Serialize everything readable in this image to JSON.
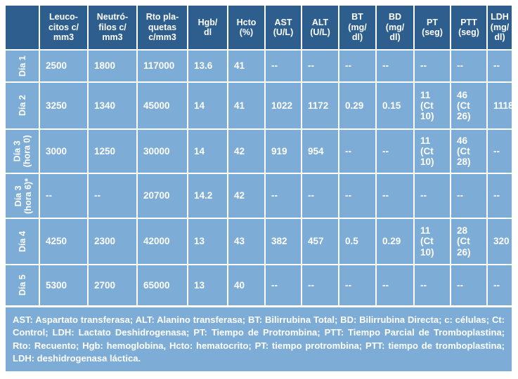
{
  "colors": {
    "header_bg": "#2d5e8e",
    "cell_bg": "#7dadd6",
    "border": "#ffffff",
    "text": "#ffffff"
  },
  "table": {
    "corner": "",
    "columns": [
      "Leuco-\ncitos c/\nmm3",
      "Neutró-\nfilos c/\nmm3",
      "Rto pla-\nquetas\nc/mm3",
      "Hgb/\ndl",
      "Hcto\n(%)",
      "AST\n(U/L)",
      "ALT\n(U/L)",
      "BT\n(mg/\ndl)",
      "BD\n(mg/\ndl)",
      "PT\n(seg)",
      "PTT\n(seg)",
      "LDH\n(mg/\ndl)"
    ],
    "rows": [
      {
        "label": "Día 1",
        "values": [
          "2500",
          "1800",
          "117000",
          "13.6",
          "41",
          "--",
          "--",
          "--",
          "--",
          "--",
          "--",
          "--"
        ]
      },
      {
        "label": "Día 2",
        "values": [
          "3250",
          "1340",
          "45000",
          "14",
          "41",
          "1022",
          "1172",
          "0.29",
          "0.15",
          "11\n(Ct\n10)",
          "46\n(Ct\n26)",
          "1118"
        ]
      },
      {
        "label": "Día 3\n(hora 0)",
        "values": [
          "3000",
          "1250",
          "30000",
          "14",
          "42",
          "919",
          "954",
          "--",
          "--",
          "11\n(Ct\n10)",
          "46\n(Ct\n28)",
          "--"
        ]
      },
      {
        "label": "Día 3\n(hora 6)*",
        "values": [
          "--",
          "--",
          "20700",
          "14.2",
          "42",
          "--",
          "--",
          "--",
          "--",
          "--",
          "--",
          "--"
        ]
      },
      {
        "label": "Día 4",
        "values": [
          "4250",
          "2300",
          "42000",
          "13",
          "43",
          "382",
          "457",
          "0.5",
          "0.29",
          "11\n(Ct\n10)",
          "28\n(Ct\n26)",
          "320"
        ]
      },
      {
        "label": "Día 5",
        "values": [
          "5300",
          "2700",
          "65000",
          "13",
          "40",
          "--",
          "--",
          "--",
          "--",
          "--",
          "--",
          "--"
        ]
      }
    ],
    "footnote": "AST: Aspartato transferasa; ALT: Alanino transferasa; BT: Bilirrubina Total; BD: Bilirrubina Directa; c: células; Ct: Control; LDH: Lactato Deshidrogenasa; PT: Tiempo de Protrombina; PTT: Tiempo Parcial de Tromboplastina; Rto: Recuento; Hgb: hemoglobina, Hcto: hematocrito; PT: tiempo protrombina; PTT: tiempo de tromboplastina; LDH: deshidrogenasa láctica."
  }
}
